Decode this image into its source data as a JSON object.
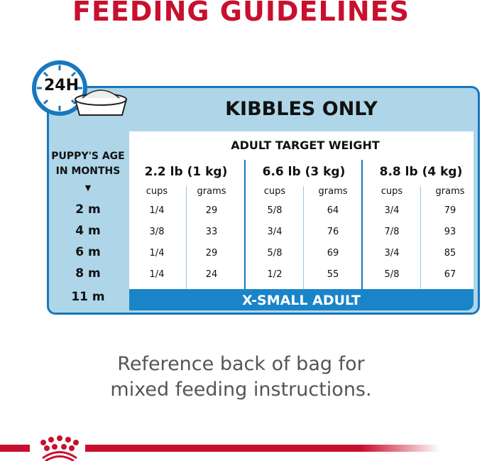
{
  "title": "FEEDING GUIDELINES",
  "badge": "24H",
  "subtitle": "KIBBLES ONLY",
  "age_header": [
    "PUPPY'S AGE",
    "IN MONTHS"
  ],
  "weight_header": "ADULT TARGET WEIGHT",
  "weights": [
    "2.2 lb (1 kg)",
    "6.6 lb (3 kg)",
    "8.8 lb (4 kg)"
  ],
  "units": [
    "cups",
    "grams"
  ],
  "rows": [
    {
      "age": "2 m",
      "values": [
        "1/4",
        "29",
        "5/8",
        "64",
        "3/4",
        "79"
      ]
    },
    {
      "age": "4 m",
      "values": [
        "3/8",
        "33",
        "3/4",
        "76",
        "7/8",
        "93"
      ]
    },
    {
      "age": "6 m",
      "values": [
        "1/4",
        "29",
        "5/8",
        "69",
        "3/4",
        "85"
      ]
    },
    {
      "age": "8 m",
      "values": [
        "1/4",
        "24",
        "1/2",
        "55",
        "5/8",
        "67"
      ]
    }
  ],
  "last_age": "11 m",
  "adult_label": "X-SMALL ADULT",
  "footer": [
    "Reference back of bag for",
    "mixed feeding instructions."
  ],
  "colors": {
    "brand_red": "#c8102e",
    "blue": "#1878bd",
    "light_blue": "#aed6e8"
  }
}
